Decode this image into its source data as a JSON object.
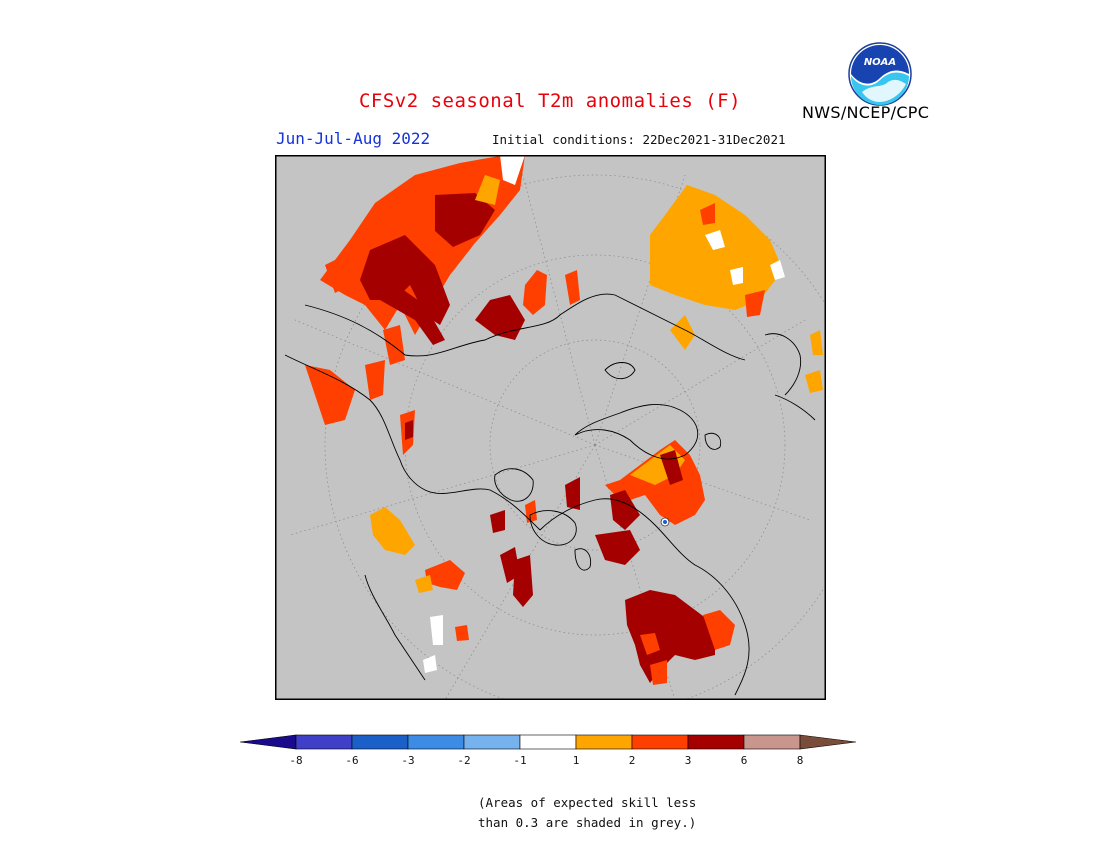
{
  "header": {
    "title": "CFSv2 seasonal T2m anomalies (F)",
    "period": "Jun-Jul-Aug 2022",
    "initial_conditions": "Initial conditions: 22Dec2021-31Dec2021",
    "agency": "NWS/NCEP/CPC",
    "logo_text": "NOAA"
  },
  "colors": {
    "grey_mask": "#c4c4c4",
    "bin_1_2": "#ffa500",
    "bin_2_3": "#ff3f00",
    "bin_3_6": "#a50000",
    "bin_6_8": "#c8968c",
    "bin_gt8": "#7a4c3a",
    "bin_m1_1": "#ffffff",
    "bin_m2_m1": "#76b2ee",
    "bin_m3_m2": "#3c8ce6",
    "bin_m6_m3": "#1b60c8",
    "bin_m8_m6": "#3f3fc8",
    "bin_lt_m8": "#1a0a8c",
    "coast": "#000000"
  },
  "colorbar": {
    "tick_labels": [
      "-8",
      "-6",
      "-3",
      "-2",
      "-1",
      "1",
      "2",
      "3",
      "6",
      "8"
    ],
    "bin_colors": [
      "#3f3fc8",
      "#1b60c8",
      "#3c8ce6",
      "#76b2ee",
      "#ffffff",
      "#ffa500",
      "#ff3f00",
      "#a50000",
      "#c8968c"
    ],
    "end_low_color": "#1a0a8c",
    "end_high_color": "#7a4c3a"
  },
  "note": {
    "line1": "(Areas of expected skill less",
    "line2": "than 0.3 are shaded in grey.)"
  }
}
